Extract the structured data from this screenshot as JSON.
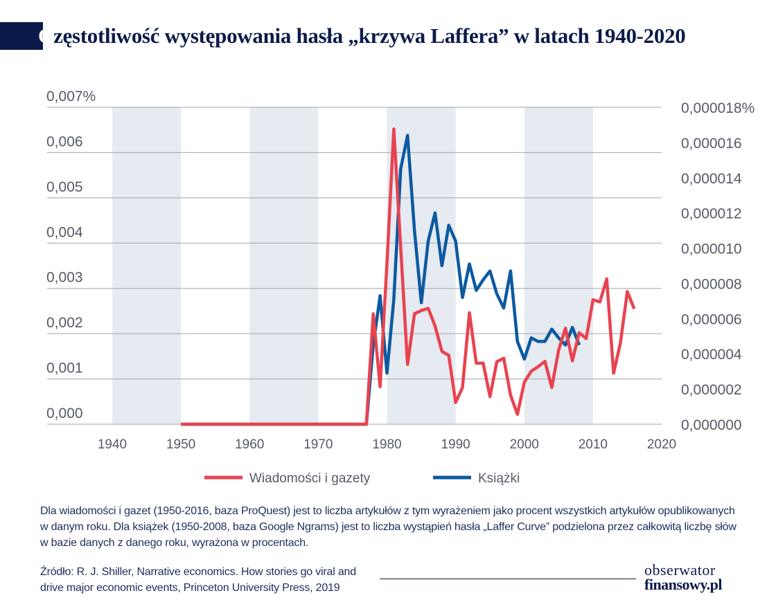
{
  "header": {
    "title_first_letter": "C",
    "title_rest": "zęstotliwość występowania hasła „krzywa Laffera” w latach 1940-2020"
  },
  "notes": {
    "line1": "Dla wiadomości i gazet (1950-2016, baza ProQuest) jest to liczba artykułów z tym wyrażeniem jako procent wszystkich artykułów opublikowanych w danym roku. Dla książek (1950-2008, baza Google Ngrams) jest to liczba wystąpień hasła „Laffer Curve” podzielona przez całkowitą liczbę słów w bazie danych z danego roku, wyrażona w procentach."
  },
  "source": {
    "text": "Źródło: R. J. Shiller, Narrative economics. How stories go viral and drive major economic events, Princeton University Press, 2019"
  },
  "logo": {
    "line1": "obserwator",
    "line2": "finansowy.pl"
  },
  "colors": {
    "navy": "#0c1a4b",
    "news": "#e8434f",
    "books": "#0b5aa0",
    "band": "#e6eaf1",
    "grid": "#9ea3ae"
  },
  "chart_data": {
    "type": "line",
    "xlim": [
      1940,
      2020
    ],
    "x_ticks": [
      "1940",
      "1950",
      "1960",
      "1970",
      "1980",
      "1990",
      "2000",
      "2010",
      "2020"
    ],
    "y_left": {
      "lim": [
        0,
        0.007
      ],
      "ticks": [
        "0,000",
        "0,001",
        "0,002",
        "0,003",
        "0,004",
        "0,005",
        "0,006",
        "0,007%"
      ]
    },
    "y_right": {
      "lim": [
        0,
        1.8e-05
      ],
      "ticks": [
        "0,000000",
        "0,000002",
        "0,000004",
        "0,000006",
        "0,000008",
        "0,000010",
        "0,000012",
        "0,000014",
        "0,000016",
        "0,000018%"
      ]
    },
    "shaded_decades": [
      [
        1940,
        1950
      ],
      [
        1960,
        1970
      ],
      [
        1980,
        1990
      ],
      [
        2000,
        2010
      ]
    ],
    "grid": true,
    "legend_position": "bottom",
    "series": [
      {
        "name": "Wiadomości i gazety",
        "axis": "left",
        "color": "#e8434f",
        "x": [
          1950,
          1977,
          1978,
          1979,
          1980,
          1981,
          1982,
          1983,
          1984,
          1985,
          1986,
          1987,
          1988,
          1989,
          1990,
          1991,
          1992,
          1993,
          1994,
          1995,
          1996,
          1997,
          1998,
          1999,
          2000,
          2001,
          2002,
          2003,
          2004,
          2005,
          2006,
          2007,
          2008,
          2009,
          2010,
          2011,
          2012,
          2013,
          2014,
          2015,
          2016
        ],
        "y": [
          0,
          0,
          0.00244,
          0.00083,
          0.00355,
          0.00652,
          0.00391,
          0.00132,
          0.00244,
          0.00251,
          0.00256,
          0.00217,
          0.00161,
          0.00152,
          0.00048,
          0.00081,
          0.00246,
          0.00135,
          0.00135,
          0.00061,
          0.00138,
          0.00146,
          0.00064,
          0.00022,
          0.00093,
          0.00117,
          0.00127,
          0.00139,
          0.00081,
          0.00164,
          0.00212,
          0.0014,
          0.00202,
          0.00189,
          0.00275,
          0.0027,
          0.00321,
          0.00113,
          0.0018,
          0.00293,
          0.00255
        ]
      },
      {
        "name": "Książki",
        "axis": "right",
        "color": "#0b5aa0",
        "x": [
          1950,
          1977,
          1978,
          1979,
          1980,
          1981,
          1982,
          1983,
          1984,
          1985,
          1986,
          1987,
          1988,
          1989,
          1990,
          1991,
          1992,
          1993,
          1994,
          1995,
          1996,
          1997,
          1998,
          1999,
          2000,
          2001,
          2002,
          2003,
          2004,
          2005,
          2006,
          2007,
          2008
        ],
        "y": [
          0,
          0,
          4.5e-06,
          7.3e-06,
          2.9e-06,
          7.1e-06,
          1.45e-05,
          1.64e-05,
          1.1e-05,
          6.9e-06,
          1.04e-05,
          1.2e-05,
          9e-06,
          1.13e-05,
          1.04e-05,
          7.2e-06,
          9.1e-06,
          7.6e-06,
          8.2e-06,
          8.7e-06,
          7.4e-06,
          6.6e-06,
          8.7e-06,
          4.7e-06,
          3.7e-06,
          4.9e-06,
          4.7e-06,
          4.7e-06,
          5.4e-06,
          4.9e-06,
          4.5e-06,
          5.5e-06,
          4.5e-06
        ]
      }
    ]
  }
}
